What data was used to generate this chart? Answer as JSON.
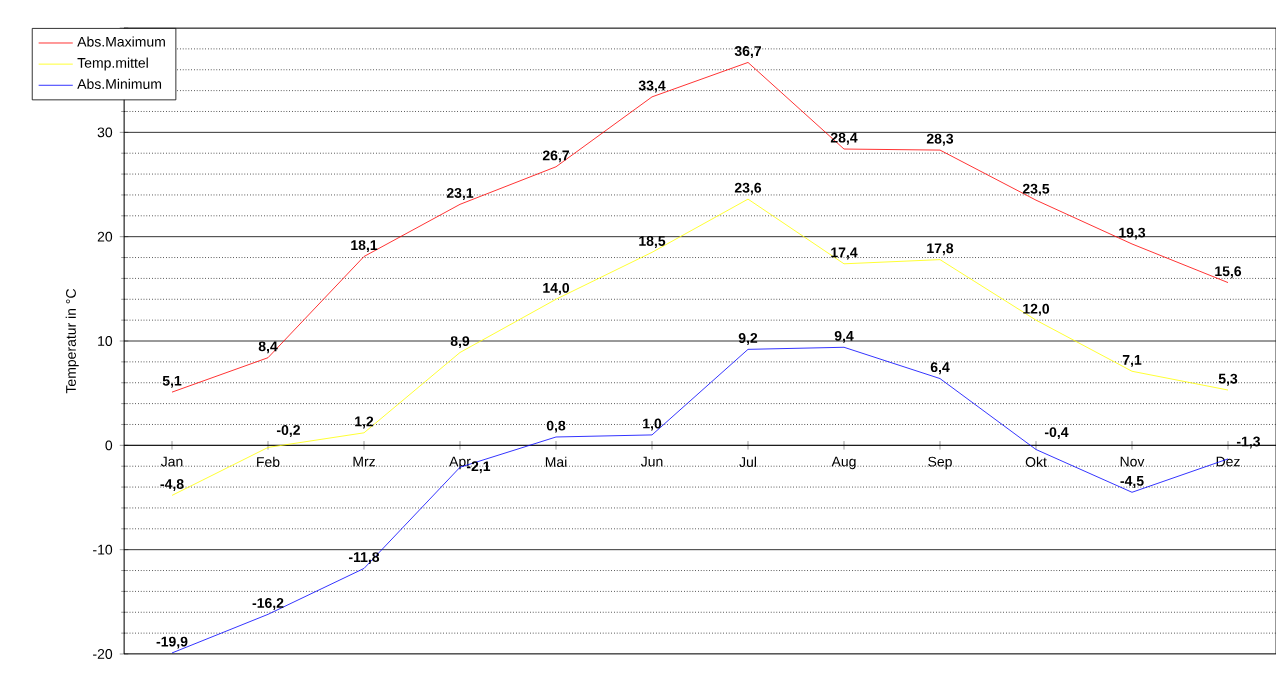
{
  "chart_data": {
    "type": "line",
    "ylabel": "Temperatur in °C",
    "categories": [
      "Jan",
      "Feb",
      "Mrz",
      "Apr",
      "Mai",
      "Jun",
      "Jul",
      "Aug",
      "Sep",
      "Okt",
      "Nov",
      "Dez"
    ],
    "series": [
      {
        "name": "Abs.Maximum",
        "color": "#ff0000",
        "values": [
          5.1,
          8.4,
          18.1,
          23.1,
          26.7,
          33.4,
          36.7,
          28.4,
          28.3,
          23.5,
          19.3,
          15.6
        ],
        "value_labels": [
          "5,1",
          "8,4",
          "18,1",
          "23,1",
          "26,7",
          "33,4",
          "36,7",
          "28,4",
          "28,3",
          "23,5",
          "19,3",
          "15,6"
        ]
      },
      {
        "name": "Temp.mittel",
        "color": "#ffff00",
        "values": [
          -4.8,
          -0.2,
          1.2,
          8.9,
          14.0,
          18.5,
          23.6,
          17.4,
          17.8,
          12.0,
          7.1,
          5.3
        ],
        "value_labels": [
          "-4,8",
          "-0,2",
          "1,2",
          "8,9",
          "14,0",
          "18,5",
          "23,6",
          "17,4",
          "17,8",
          "12,0",
          "7,1",
          "5,3"
        ]
      },
      {
        "name": "Abs.Minimum",
        "color": "#0000ff",
        "values": [
          -19.9,
          -16.2,
          -11.8,
          -2.1,
          0.8,
          1.0,
          9.2,
          9.4,
          6.4,
          -0.4,
          -4.5,
          -1.3
        ],
        "value_labels": [
          "-19,9",
          "-16,2",
          "-11,8",
          "-2,1",
          "0,8",
          "1,0",
          "9,2",
          "9,4",
          "6,4",
          "-0,4",
          "-4,5",
          "-1,3"
        ]
      }
    ],
    "ylim": [
      -20,
      40
    ],
    "yticks": [
      -20,
      -10,
      0,
      10,
      20,
      30,
      {
        "value": 40,
        "label": null
      }
    ],
    "grid": "y",
    "legend": "top left",
    "marker": "none",
    "line_style": "solid"
  }
}
